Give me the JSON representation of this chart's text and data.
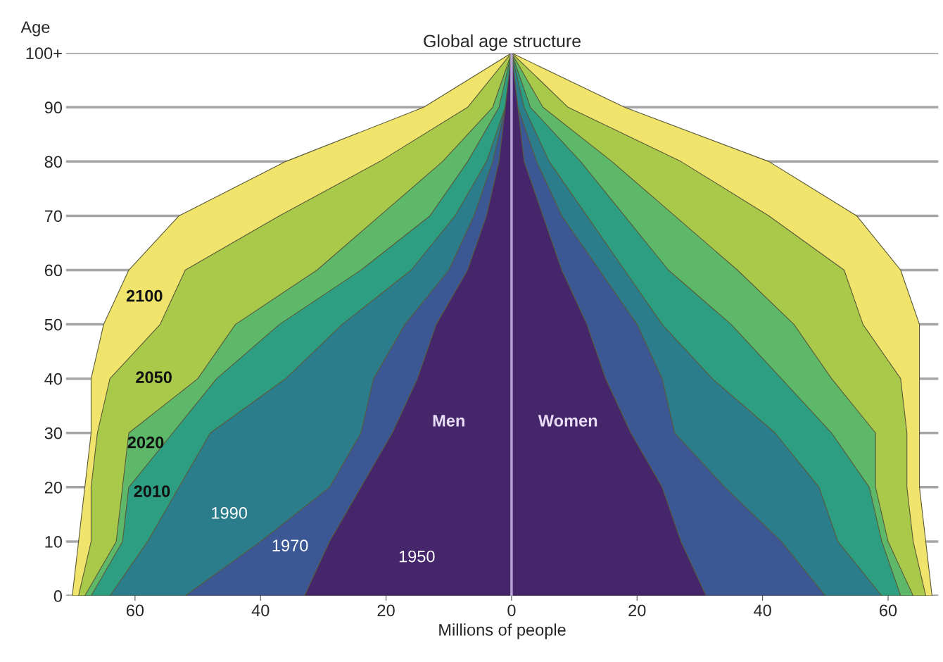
{
  "chart_data": {
    "type": "area",
    "orientation": "horizontal",
    "title": "Global age structure",
    "xlabel": "Millions of people",
    "ylabel": "Age",
    "x": [
      0,
      10,
      20,
      30,
      40,
      50,
      60,
      70,
      80,
      90,
      100
    ],
    "series": [
      {
        "name": "2100",
        "color": "#f1e46c",
        "values": [
          -70,
          -69,
          -68,
          -67,
          -67,
          -65,
          -61,
          -53,
          -36,
          -14,
          0
        ]
      },
      {
        "name": "2050",
        "color": "#a9c94a",
        "values": [
          -69,
          -67,
          -67,
          -66,
          -64,
          -56,
          -52,
          -37,
          -21,
          -7,
          0
        ]
      },
      {
        "name": "2020",
        "color": "#5db86a",
        "values": [
          -68,
          -63,
          -62,
          -61,
          -50,
          -44,
          -31,
          -21,
          -11,
          -3,
          0
        ]
      },
      {
        "name": "2010",
        "color": "#2e9e82",
        "values": [
          -67,
          -62,
          -61,
          -54,
          -47,
          -37,
          -24,
          -13,
          -7,
          -2,
          0
        ]
      },
      {
        "name": "1990",
        "color": "#2c7d8c",
        "values": [
          -64,
          -58,
          -53,
          -48,
          -36,
          -27,
          -16,
          -9,
          -4,
          -1,
          0
        ]
      },
      {
        "name": "1970",
        "color": "#3b5894",
        "values": [
          -52,
          -40,
          -29,
          -24,
          -22,
          -17,
          -10,
          -6,
          -3,
          -1,
          0
        ]
      },
      {
        "name": "1950",
        "color": "#45266a",
        "values": [
          -33,
          -29,
          -24,
          -19,
          -15,
          -12,
          -7,
          -4,
          -2,
          -1,
          0
        ]
      },
      {
        "color": "#f1e46c",
        "values": [
          67,
          66,
          65,
          65,
          65,
          65,
          62,
          55,
          41,
          18,
          0
        ]
      },
      {
        "color": "#a9c94a",
        "values": [
          66,
          64,
          63,
          63,
          62,
          56,
          53,
          41,
          27,
          9,
          0
        ]
      },
      {
        "color": "#5db86a",
        "values": [
          64,
          60,
          58,
          58,
          51,
          45,
          36,
          26,
          16,
          5,
          0
        ]
      },
      {
        "color": "#2e9e82",
        "values": [
          62,
          59,
          57,
          51,
          43,
          35,
          25,
          18,
          11,
          3,
          0
        ]
      },
      {
        "color": "#2c7d8c",
        "values": [
          59,
          52,
          49,
          42,
          32,
          24,
          18,
          12,
          6,
          2,
          0
        ]
      },
      {
        "color": "#3b5894",
        "values": [
          50,
          43,
          34,
          26,
          24,
          20,
          14,
          8,
          4,
          1,
          0
        ]
      },
      {
        "color": "#45266a",
        "values": [
          31,
          27,
          24,
          19,
          15,
          12,
          8,
          5,
          2,
          1,
          0
        ]
      }
    ],
    "xlim": [
      -71,
      68
    ],
    "xticks": [
      {
        "value": -60,
        "label": "60"
      },
      {
        "value": -40,
        "label": "40"
      },
      {
        "value": -20,
        "label": "20"
      },
      0,
      20,
      40,
      60
    ],
    "ylim": [
      0,
      100
    ],
    "yticks": [
      0,
      10,
      20,
      30,
      40,
      50,
      60,
      70,
      80,
      90,
      {
        "value": 100,
        "label": "100+"
      }
    ],
    "grid": "y",
    "ref_lines": [
      {
        "axis": "x",
        "value": 0,
        "color": "#b9a6d8"
      }
    ],
    "annotations": [
      "Men",
      "Women"
    ]
  }
}
